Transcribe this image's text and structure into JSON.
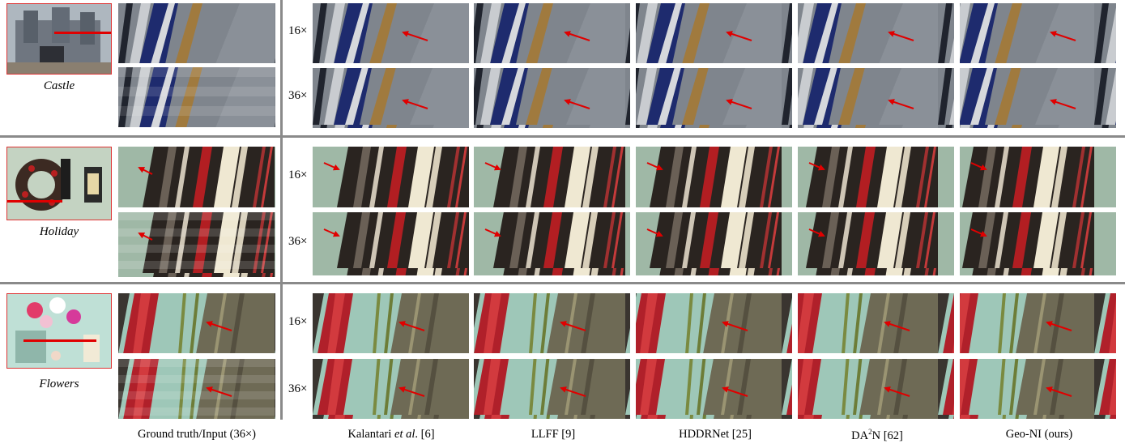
{
  "scenes": [
    {
      "name": "Castle",
      "icon": "castle-scene-thumbnail"
    },
    {
      "name": "Holiday",
      "icon": "holiday-wreath-thumbnail"
    },
    {
      "name": "Flowers",
      "icon": "flowers-vase-thumbnail"
    }
  ],
  "scales": [
    "16×",
    "36×"
  ],
  "columns": {
    "gt": "Ground truth/Input (36×)",
    "kalantari_pre": "Kalantari ",
    "kalantari_em": "et al",
    "kalantari_post": ". [6]",
    "llff": "LLFF [9]",
    "hddrnet": "HDDRNet [25]",
    "da2n_pre": "DA",
    "da2n_sup": "2",
    "da2n_post": "N [62]",
    "geoni": "Geo-NI (ours)"
  },
  "colors": {
    "separator": "#8a8a8a",
    "arrow": "#e00000",
    "highlight": "#d33333"
  }
}
